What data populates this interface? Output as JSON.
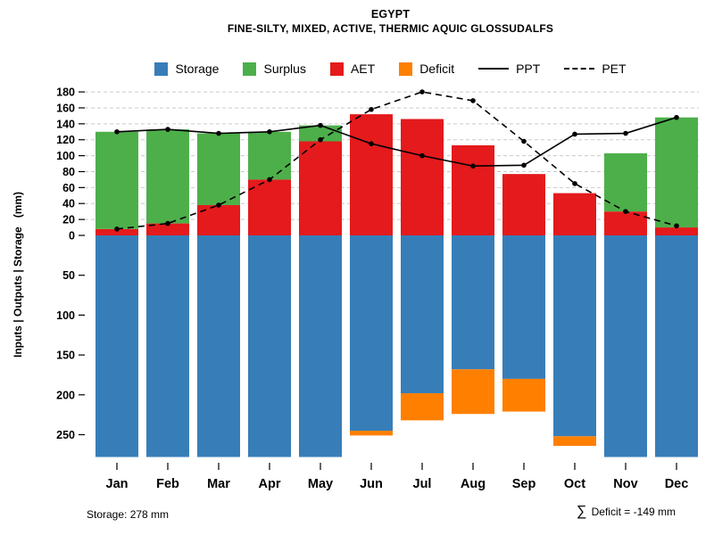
{
  "title": "EGYPT",
  "subtitle": "FINE-SILTY, MIXED, ACTIVE, THERMIC AQUIC GLOSSUDALFS",
  "y_axis_title": "Inputs | Outputs | Storage   (mm)",
  "legend": [
    {
      "label": "Storage",
      "type": "swatch",
      "color": "#377EB8"
    },
    {
      "label": "Surplus",
      "type": "swatch",
      "color": "#4DAF4A"
    },
    {
      "label": "AET",
      "type": "swatch",
      "color": "#E41A1C"
    },
    {
      "label": "Deficit",
      "type": "swatch",
      "color": "#FF7F00"
    },
    {
      "label": "PPT",
      "type": "solid-line",
      "color": "#000000"
    },
    {
      "label": "PET",
      "type": "dashed-line",
      "color": "#000000"
    }
  ],
  "footer": {
    "storage_label": "Storage: 278 mm",
    "sum_symbol": "∑",
    "deficit_label": " Deficit = -149 mm"
  },
  "chart_data": {
    "type": "bar",
    "categories": [
      "Jan",
      "Feb",
      "Mar",
      "Apr",
      "May",
      "Jun",
      "Jul",
      "Aug",
      "Sep",
      "Oct",
      "Nov",
      "Dec"
    ],
    "upper_axis": {
      "label_side": "left",
      "ticks": [
        0,
        20,
        40,
        60,
        80,
        100,
        120,
        140,
        160,
        180
      ],
      "lim": [
        0,
        180
      ],
      "grid": "dashed"
    },
    "lower_axis": {
      "label_side": "left",
      "ticks": [
        50,
        100,
        150,
        200,
        250
      ],
      "lim": [
        0,
        280
      ],
      "direction": "down",
      "grid": "off"
    },
    "series": [
      {
        "name": "AET",
        "color": "#E41A1C",
        "section": "upper",
        "values": [
          8,
          15,
          38,
          70,
          118,
          152,
          146,
          113,
          77,
          53,
          30,
          10
        ]
      },
      {
        "name": "Surplus",
        "color": "#4DAF4A",
        "section": "upper-stacked-on-AET",
        "values": [
          122,
          118,
          90,
          60,
          20,
          0,
          0,
          0,
          0,
          0,
          73,
          138
        ]
      },
      {
        "name": "Storage",
        "color": "#377EB8",
        "section": "lower",
        "values": [
          278,
          278,
          278,
          278,
          278,
          245,
          198,
          168,
          180,
          252,
          278,
          278
        ]
      },
      {
        "name": "Deficit",
        "color": "#FF7F00",
        "section": "lower-stacked-on-Storage",
        "values": [
          0,
          0,
          0,
          0,
          0,
          6,
          34,
          56,
          41,
          12,
          0,
          0
        ]
      }
    ],
    "lines": [
      {
        "name": "PPT",
        "style": "solid",
        "color": "#000000",
        "marker": "circle",
        "values": [
          130,
          133,
          128,
          130,
          138,
          115,
          100,
          87,
          88,
          127,
          128,
          148
        ]
      },
      {
        "name": "PET",
        "style": "dashed",
        "color": "#000000",
        "marker": "circle",
        "values": [
          8,
          15,
          38,
          70,
          120,
          158,
          180,
          169,
          118,
          65,
          30,
          12
        ]
      }
    ],
    "legend_position": "top",
    "totals": {
      "storage_mm": 278,
      "deficit_sum_mm": -149
    }
  }
}
